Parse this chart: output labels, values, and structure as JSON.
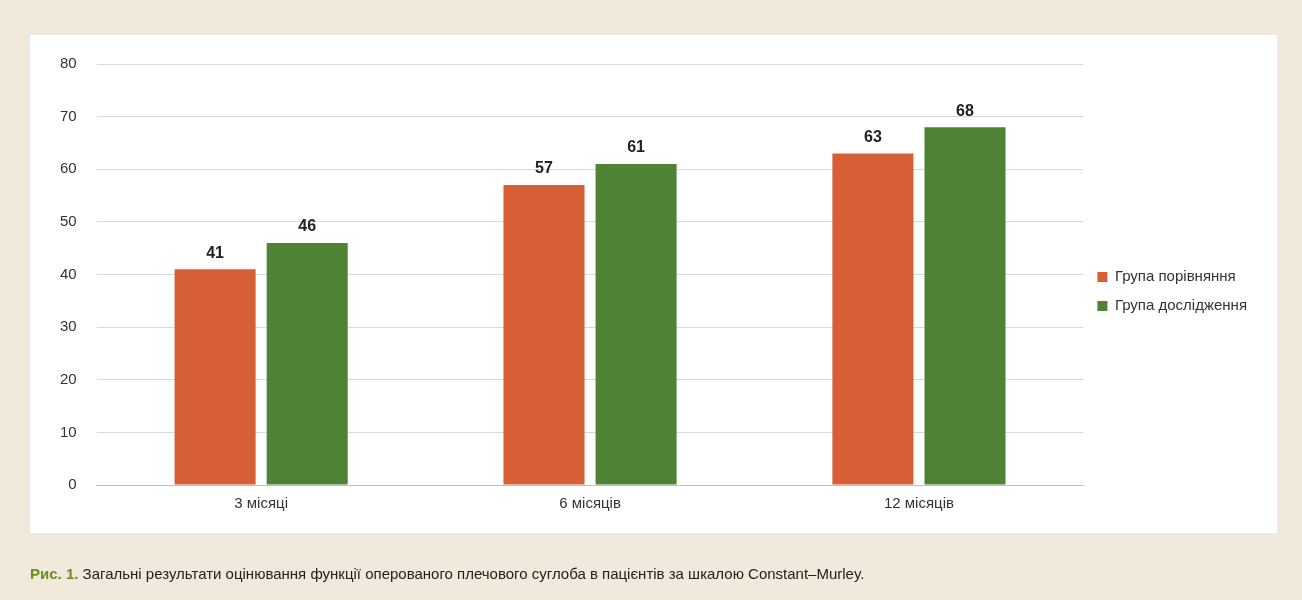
{
  "chart_data": {
    "type": "bar",
    "categories": [
      "3 місяці",
      "6 місяців",
      "12 місяців"
    ],
    "series": [
      {
        "name": "Група порівняння",
        "color": "#d65f35",
        "values": [
          41,
          57,
          63
        ]
      },
      {
        "name": "Група дослідження",
        "color": "#4e8234",
        "values": [
          46,
          61,
          68
        ]
      }
    ],
    "ylim": [
      0,
      80
    ],
    "yticks": [
      0,
      10,
      20,
      30,
      40,
      50,
      60,
      70,
      80
    ],
    "grid": "y",
    "legend": "right",
    "data_labels": true,
    "annotations": [
      "Рис. 1.",
      "Загальні результати оцінювання функції оперованого плечового суглоба в пацієнтів за шкалою Constant–Murley."
    ]
  }
}
